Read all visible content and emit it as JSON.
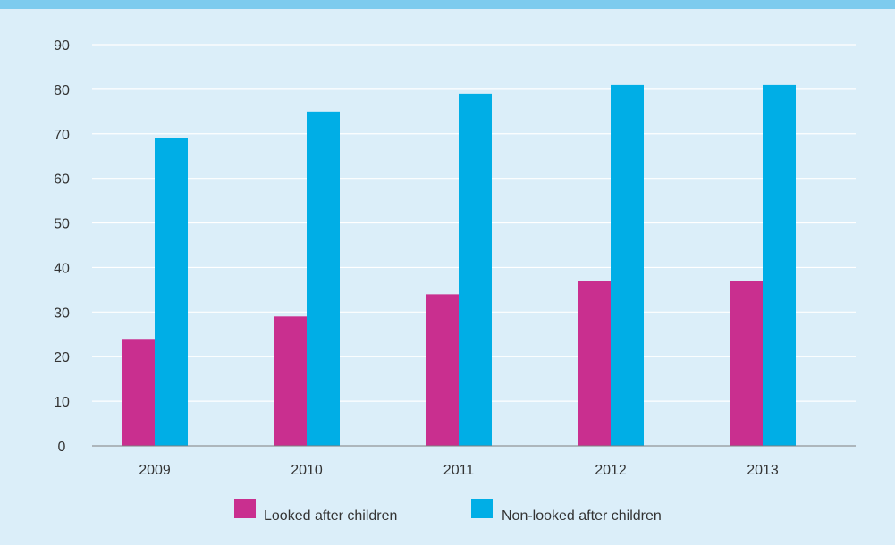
{
  "chart_data": {
    "type": "bar",
    "categories": [
      "2009",
      "2010",
      "2011",
      "2012",
      "2013"
    ],
    "series": [
      {
        "name": "Looked after children",
        "values": [
          24,
          29,
          34,
          37,
          37
        ],
        "color": "#c92f8f"
      },
      {
        "name": "Non-looked after children",
        "values": [
          69,
          75,
          79,
          81,
          81
        ],
        "color": "#00aee6"
      }
    ],
    "ylim": [
      0,
      90
    ],
    "yticks": [
      "0",
      "10",
      "20",
      "30",
      "40",
      "50",
      "60",
      "70",
      "80",
      "90"
    ],
    "title": "",
    "xlabel": "",
    "ylabel": "",
    "grid": true,
    "legend_position": "bottom-center"
  },
  "colors": {
    "background": "#dbeef9",
    "top_band": "#7dcbee",
    "gridline": "#ffffff",
    "axis": "#7f7f7f"
  }
}
